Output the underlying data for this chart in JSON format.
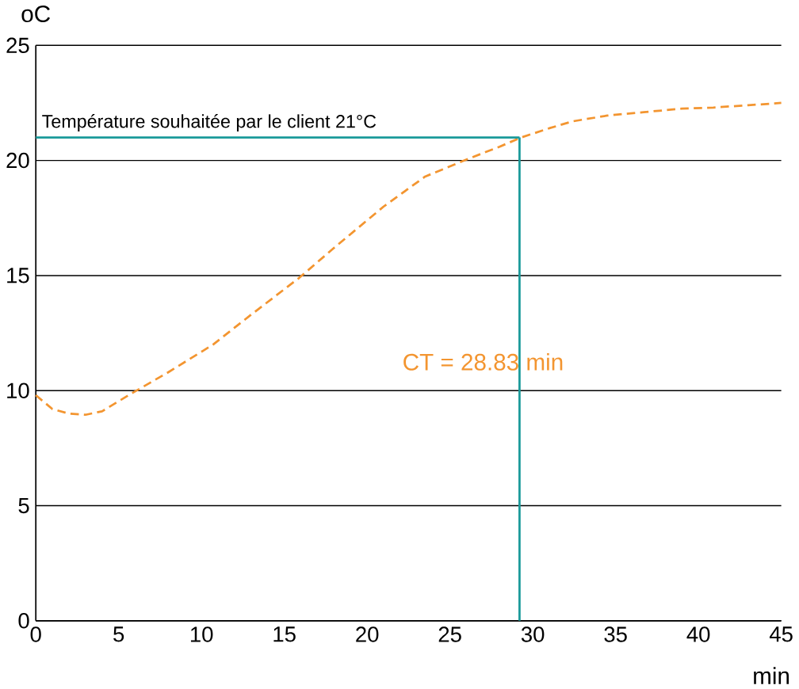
{
  "chart_data": {
    "type": "line",
    "xlabel": "min",
    "ylabel": "oC",
    "x": [
      0,
      1,
      2,
      3,
      4,
      5.6,
      8,
      10.7,
      13,
      15.9,
      18,
      21,
      23.5,
      26.2,
      28,
      29.3,
      31,
      32.4,
      34.5,
      36.7,
      39,
      40.9,
      43,
      45
    ],
    "series": [
      {
        "color": "#f39530",
        "values": [
          9.8,
          9.2,
          9.0,
          8.95,
          9.1,
          9.8,
          10.8,
          12.0,
          13.3,
          14.9,
          16.2,
          18.0,
          19.3,
          20.1,
          20.6,
          21.0,
          21.4,
          21.7,
          21.95,
          22.1,
          22.25,
          22.3,
          22.4,
          22.5
        ]
      }
    ],
    "line_style": "dashed",
    "marker": "none",
    "grid": "y",
    "xlim": [
      0,
      45
    ],
    "ylim": [
      0,
      25
    ],
    "xticks": [
      0,
      5,
      10,
      15,
      20,
      25,
      30,
      35,
      40,
      45
    ],
    "yticks": [
      0,
      5,
      10,
      15,
      20,
      25
    ],
    "ref_lines": [
      {
        "axis": "y",
        "value": 21,
        "label": "Température souhaitée par le client 21°C",
        "color": "#1a9a9a"
      },
      {
        "axis": "x",
        "value": 29.2,
        "color": "#1a9a9a"
      }
    ],
    "annotations": [
      "CT = 28.83 min"
    ]
  }
}
